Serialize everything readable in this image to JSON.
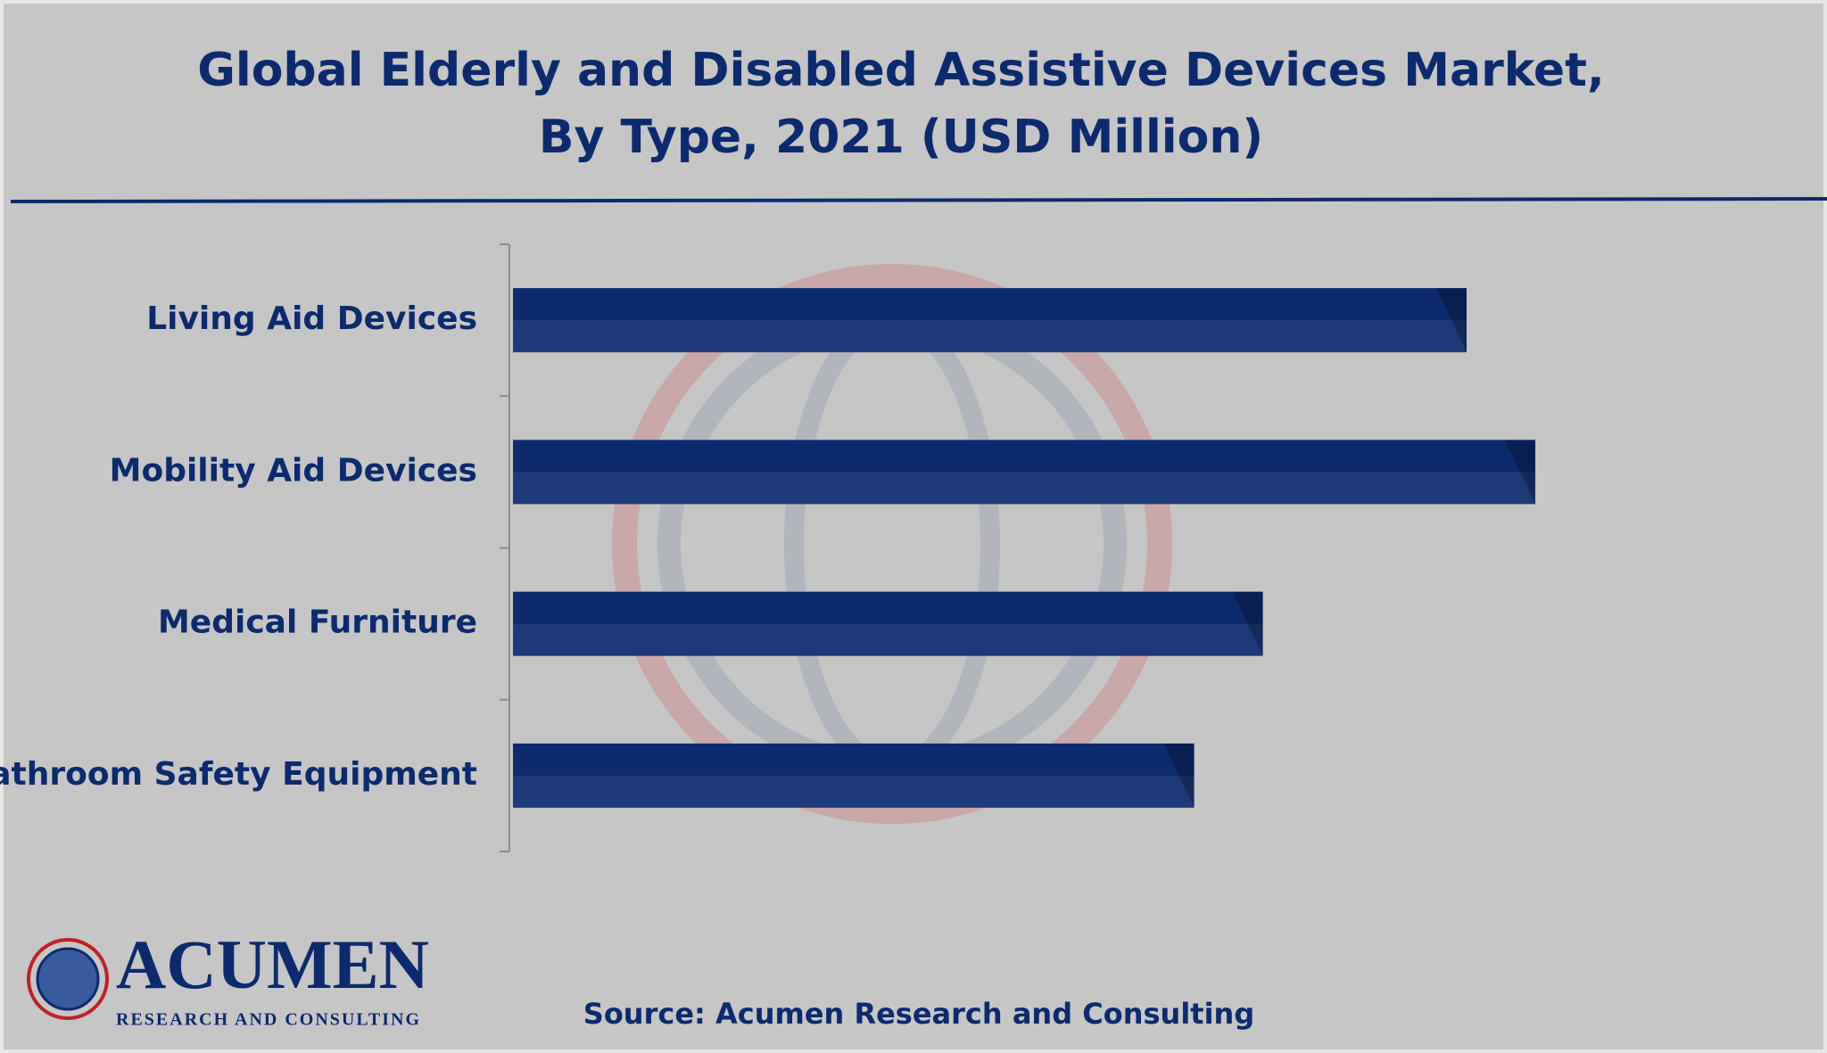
{
  "chart_data": {
    "type": "barh",
    "title": [
      "Global Elderly and Disabled Assistive Devices Market,",
      "By Type, 2021 (USD Million)"
    ],
    "categories": [
      "Living Aid Devices",
      "Mobility Aid Devices",
      "Medical Furniture",
      "Bathroom Safety Equipment"
    ],
    "values": [
      819,
      878,
      644,
      585
    ],
    "color": "#0d2a6e",
    "source": "Source: Acumen Research and Consulting"
  },
  "branding": {
    "name": "ACUMEN",
    "tagline": "RESEARCH AND CONSULTING"
  }
}
